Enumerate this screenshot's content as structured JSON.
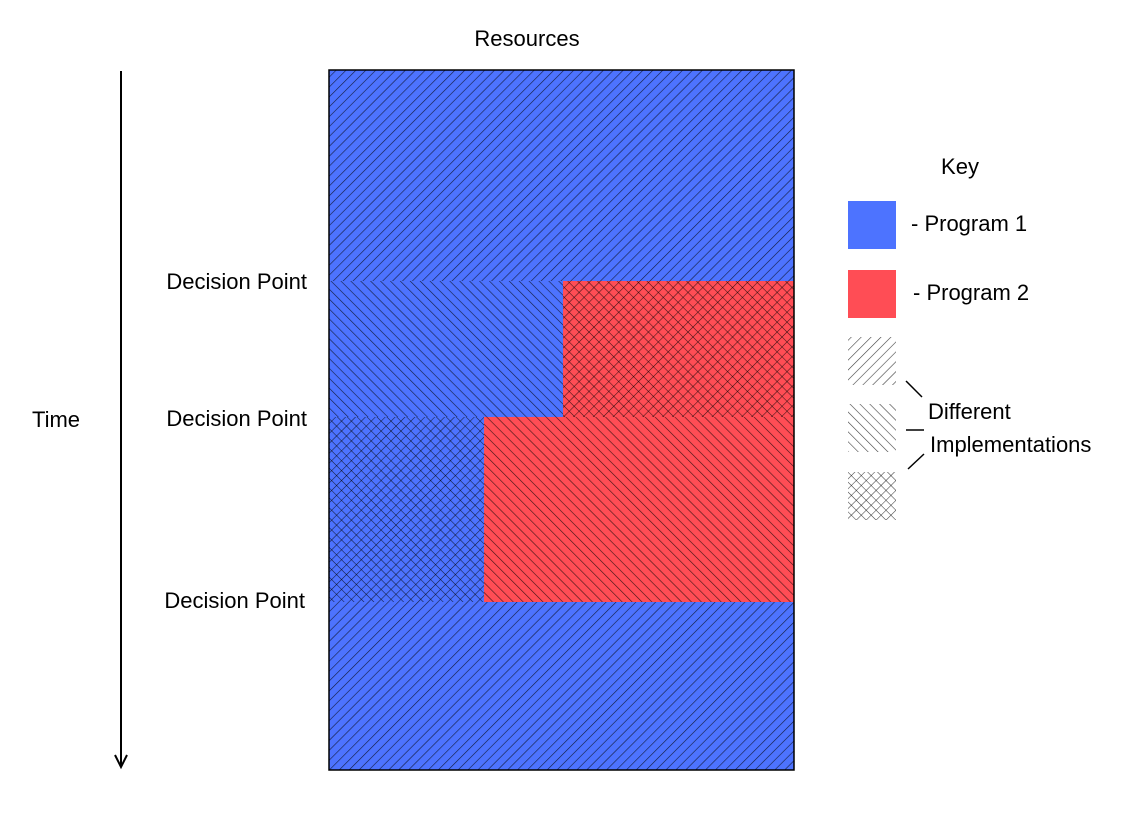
{
  "title": "Resources",
  "time_label": "Time",
  "decision_points": [
    "Decision Point",
    "Decision Point",
    "Decision Point"
  ],
  "key": {
    "title": "Key",
    "program1_label": "- Program 1",
    "program2_label": "- Program 2",
    "implementations_label_line1": "Different",
    "implementations_label_line2": "Implementations"
  },
  "colors": {
    "program1": "#4d73ff",
    "program2": "#ff4d55",
    "hatch": "#000000",
    "outline": "#000000"
  }
}
